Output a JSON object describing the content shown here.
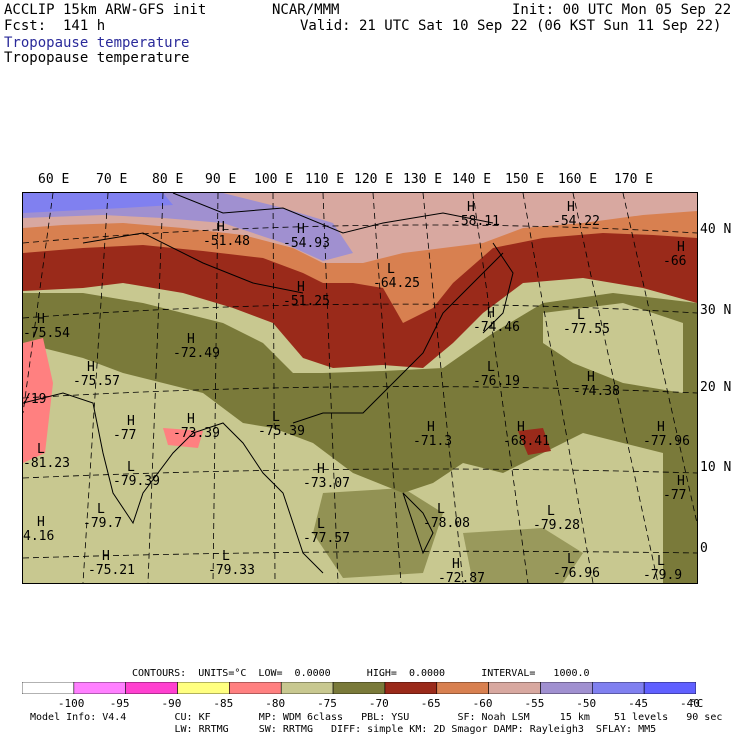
{
  "header": {
    "model": "ACCLIP 15km ARW-GFS init",
    "fcst": "Fcst:  141 h",
    "org": "NCAR/MMM",
    "init": "Init: 00 UTC Mon 05 Sep 22",
    "valid": "Valid: 21 UTC Sat 10 Sep 22 (06 KST Sun 11 Sep 22)",
    "field1": "Tropopause temperature",
    "field2": "Tropopause temperature"
  },
  "lon_labels": [
    "60 E",
    "70 E",
    "80 E",
    "90 E",
    "100 E",
    "110 E",
    "120 E",
    "130 E",
    "140 E",
    "150 E",
    "160 E",
    "170 E"
  ],
  "lat_labels": [
    "40 N",
    "30 N",
    "20 N",
    "10 N",
    "0"
  ],
  "map_labels": [
    {
      "t": "H",
      "v": "-51.48"
    },
    {
      "t": "H",
      "v": "-54.93"
    },
    {
      "t": "H",
      "v": "-58.11"
    },
    {
      "t": "H",
      "v": "-54.22"
    },
    {
      "t": "H",
      "v": "-66"
    },
    {
      "t": "H",
      "v": "-51.25"
    },
    {
      "t": "L",
      "v": "-64.25"
    },
    {
      "t": "H",
      "v": "-75.54"
    },
    {
      "t": "H",
      "v": "-72.49"
    },
    {
      "t": "H",
      "v": "-74.46"
    },
    {
      "t": "L",
      "v": "-77.55"
    },
    {
      "t": "H",
      "v": "-75.57"
    },
    {
      "t": "L",
      "v": "-76.19"
    },
    {
      "t": "H",
      "v": "-74.38"
    },
    {
      "t": "L",
      "v": "-75.39"
    },
    {
      "t": "H",
      "v": "-73.39"
    },
    {
      "t": "H",
      "v": "-77"
    },
    {
      "t": "H",
      "v": "-71.3"
    },
    {
      "t": "H",
      "v": "-68.41"
    },
    {
      "t": "H",
      "v": "-77.96"
    },
    {
      "t": "L",
      "v": "-81.23"
    },
    {
      "t": "L",
      "v": "-79.39"
    },
    {
      "t": "H",
      "v": "-73.07"
    },
    {
      "t": "H",
      "v": "-77"
    },
    {
      "t": "L",
      "v": "-79.7"
    },
    {
      "t": "L",
      "v": "-77.57"
    },
    {
      "t": "L",
      "v": "-78.08"
    },
    {
      "t": "L",
      "v": "-79.28"
    },
    {
      "t": "H",
      "v": "4.16"
    },
    {
      "t": "H",
      "v": "-75.21"
    },
    {
      "t": "L",
      "v": "-79.33"
    },
    {
      "t": "H",
      "v": "-72.87"
    },
    {
      "t": "L",
      "v": "-76.96"
    },
    {
      "t": "L",
      "v": "-79.9"
    },
    {
      "t": "",
      "v": "/19"
    }
  ],
  "contours_line": "CONTOURS:  UNITS=°C  LOW=  0.0000      HIGH=  0.0000      INTERVAL=   1000.0",
  "legend": {
    "colors": [
      "#ffffff",
      "#ff80ff",
      "#ff40d0",
      "#ffff80",
      "#ff8080",
      "#c8c890",
      "#7a7a3a",
      "#9a2a1a",
      "#d88050",
      "#d8a8a0",
      "#a090d0",
      "#8080f0",
      "#6060ff"
    ],
    "labels": [
      "-100",
      "-95",
      "-90",
      "-85",
      "-80",
      "-75",
      "-70",
      "-65",
      "-60",
      "-55",
      "-50",
      "-45",
      "-40"
    ],
    "unit": "°C"
  },
  "footer": {
    "line1": "Model Info: V4.4        CU: KF        MP: WDM 6class   PBL: YSU        SF: Noah LSM     15 km    51 levels   90 sec",
    "line2": "                        LW: RRTMG     SW: RRTMG   DIFF: simple KM: 2D Smagor DAMP: Rayleigh3  SFLAY: MM5"
  }
}
